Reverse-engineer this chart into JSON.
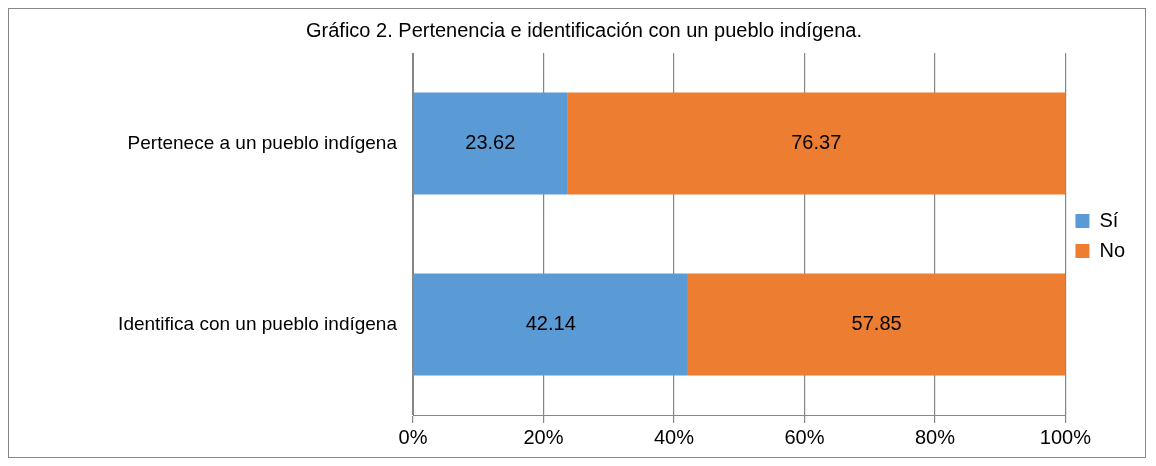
{
  "chart_data": {
    "type": "bar",
    "orientation": "horizontal",
    "stacked": true,
    "title": "Gráfico 2. Pertenencia e identificación con un pueblo indígena.",
    "categories": [
      "Pertenece a un pueblo indígena",
      "Identifica con un pueblo indígena"
    ],
    "series": [
      {
        "name": "Sí",
        "color": "#5b9bd5",
        "values": [
          23.62,
          42.14
        ]
      },
      {
        "name": "No",
        "color": "#ed7d31",
        "values": [
          76.37,
          57.85
        ]
      }
    ],
    "xlim": [
      0,
      100
    ],
    "xticks": [
      {
        "value": 0,
        "label": "0%"
      },
      {
        "value": 20,
        "label": "20%"
      },
      {
        "value": 40,
        "label": "40%"
      },
      {
        "value": 60,
        "label": "60%"
      },
      {
        "value": 80,
        "label": "80%"
      },
      {
        "value": 100,
        "label": "100%"
      }
    ],
    "grid": "x",
    "legend": "right",
    "data_labels": true
  }
}
